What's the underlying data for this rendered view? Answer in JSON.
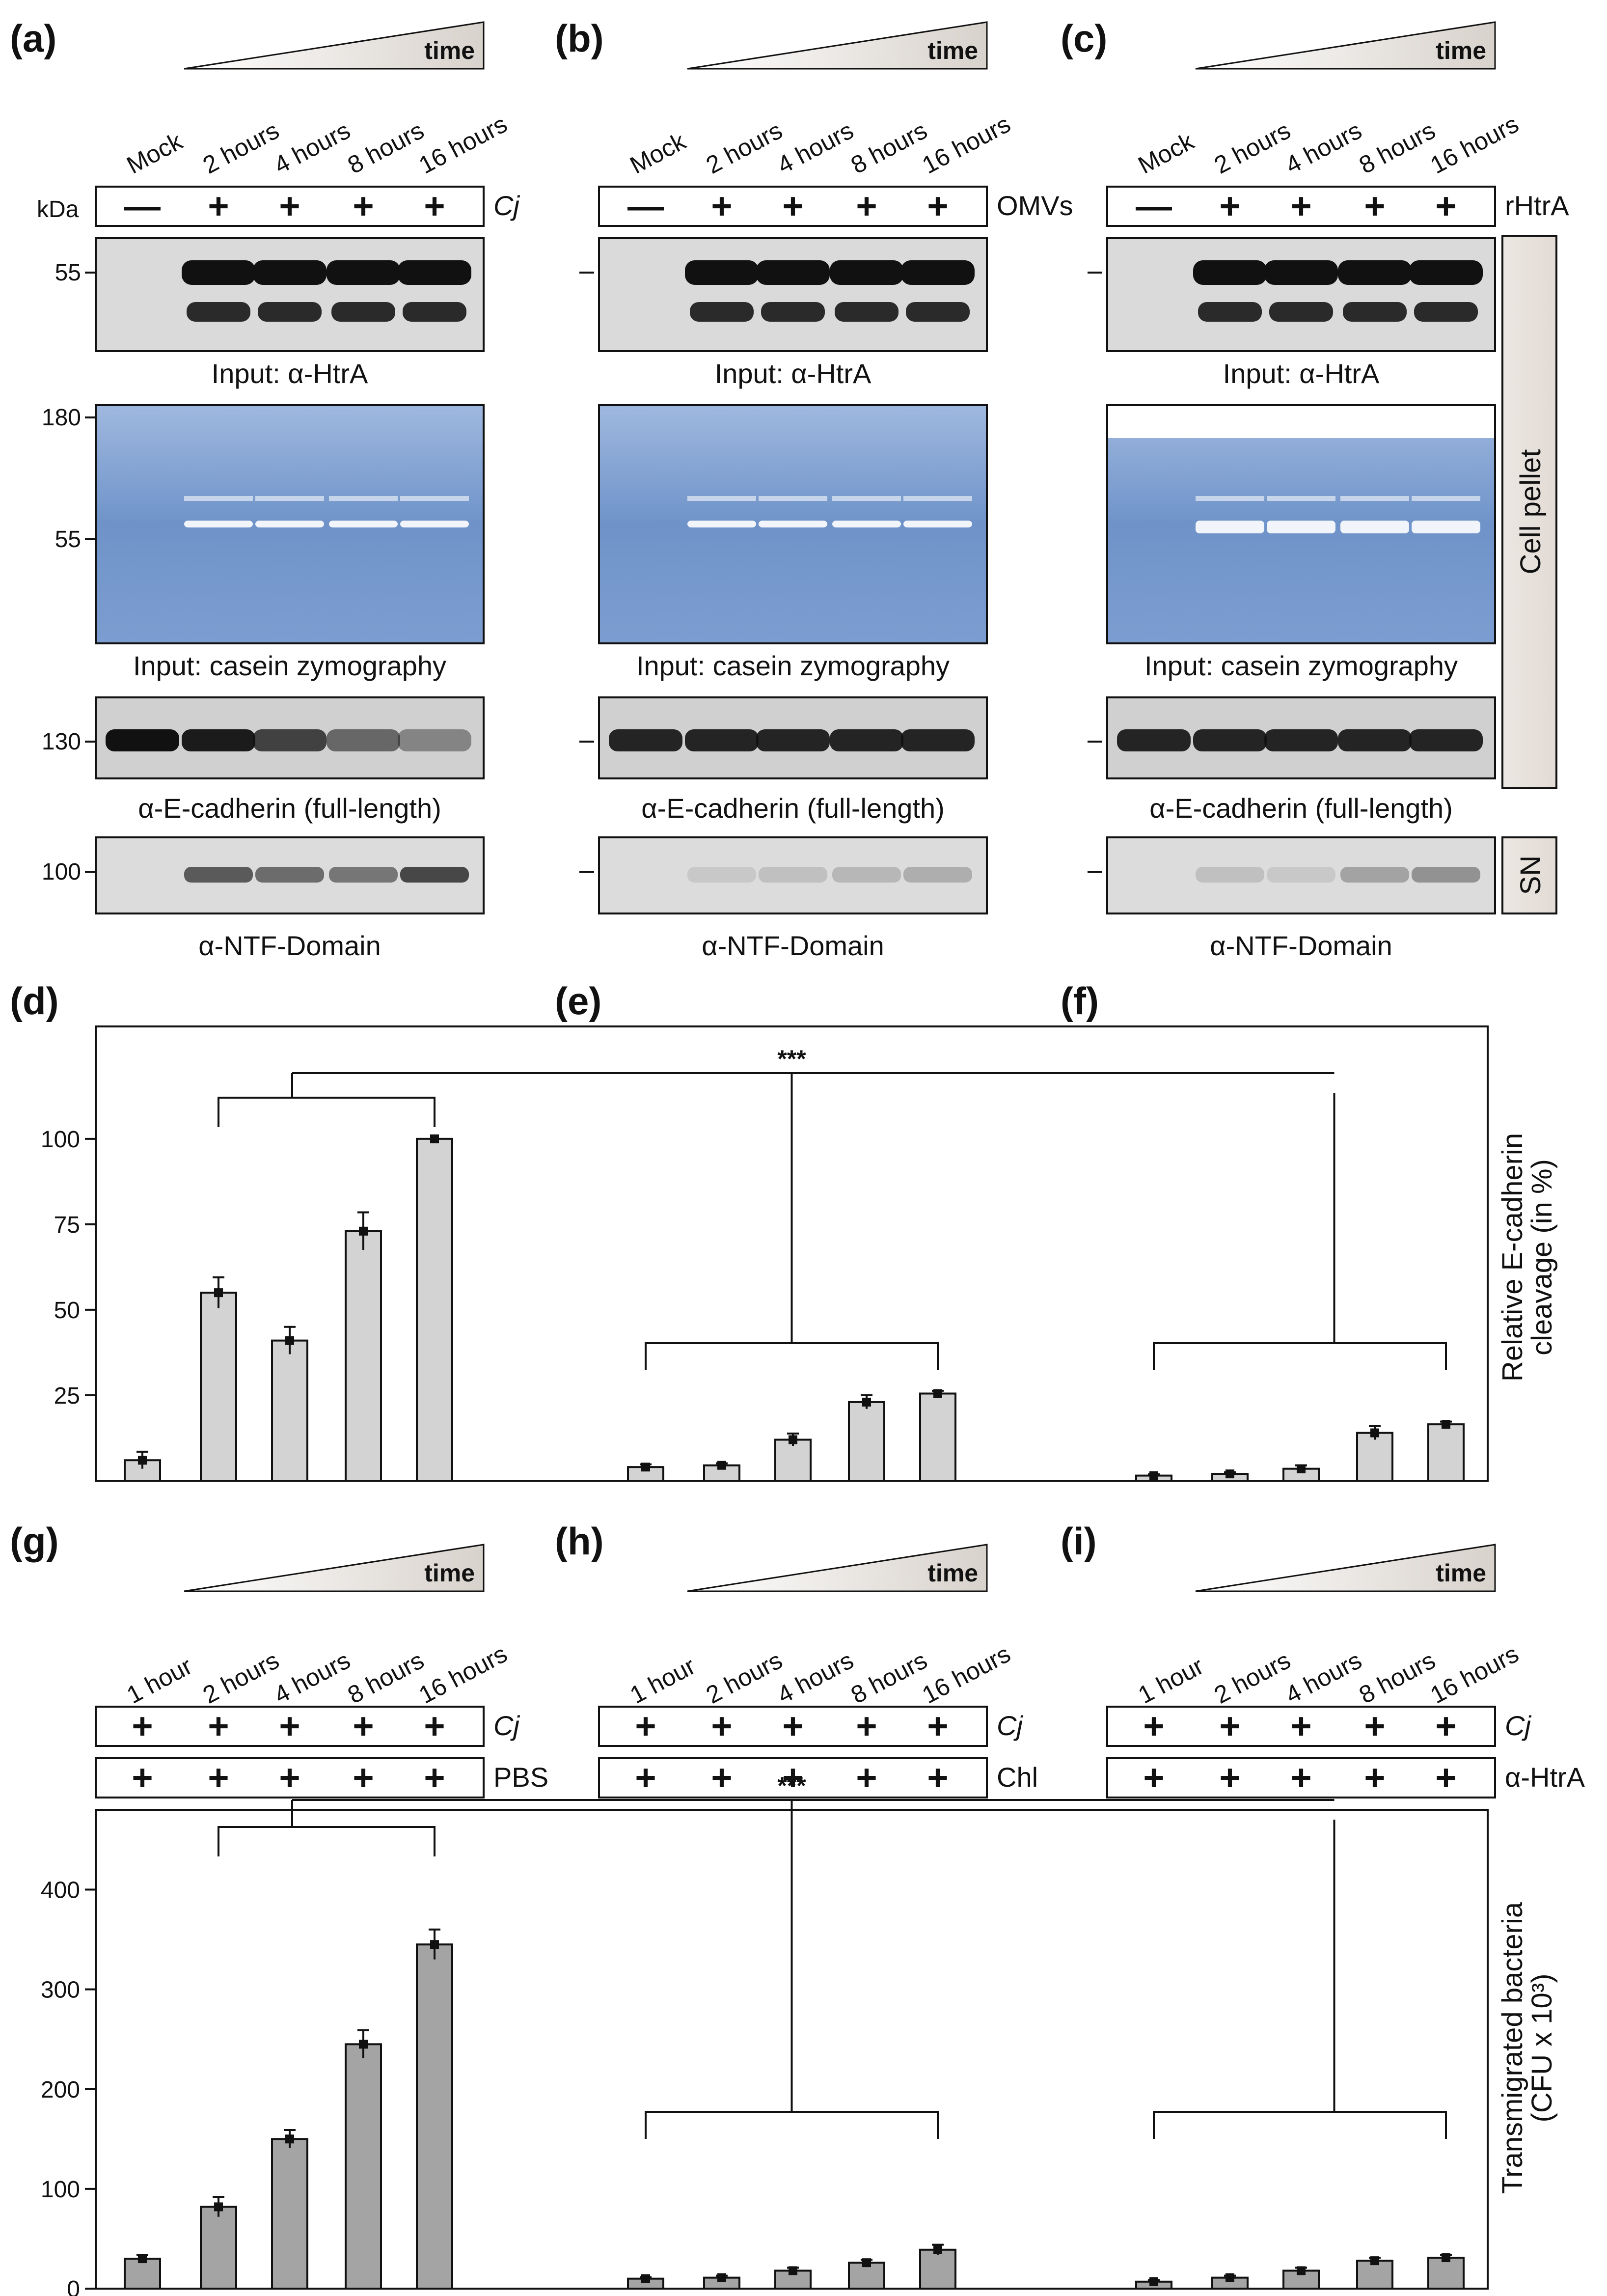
{
  "figure": {
    "panels": {
      "a": "(a)",
      "b": "(b)",
      "c": "(c)",
      "d": "(d)",
      "e": "(e)",
      "f": "(f)",
      "g": "(g)",
      "h": "(h)",
      "i": "(i)"
    },
    "time_label": "time",
    "kda_label": "kDa",
    "top_lanes": [
      "Mock",
      "2 hours",
      "4 hours",
      "8 hours",
      "16 hours"
    ],
    "bottom_lanes": [
      "1 hour",
      "2 hours",
      "4 hours",
      "8 hours",
      "16 hours"
    ],
    "treatment_signs": [
      "—",
      "+",
      "+",
      "+",
      "+"
    ],
    "plus_sign": "+",
    "treatments_top": [
      "Cj",
      "OMVs",
      "rHtrA"
    ],
    "treatments_bottom_1": [
      "Cj",
      "Cj",
      "Cj"
    ],
    "treatments_bottom_2": [
      "PBS",
      "Chl",
      "α-HtrA"
    ],
    "side_labels": {
      "cell_pellet": "Cell pellet",
      "sn": "SN"
    },
    "markers": {
      "htra": "55",
      "zymo_top": "180",
      "zymo_mid": "55",
      "ecad": "130",
      "ntf": "100"
    },
    "blot_captions": {
      "htra": "Input: α-HtrA",
      "zymo": "Input: casein zymography",
      "ecad": "α-E-cadherin (full-length)",
      "ntf": "α-NTF-Domain"
    },
    "colors": {
      "bar_light": "#d3d3d3",
      "bar_dark": "#a4a4a4",
      "zymo_blue": "#6f93c9",
      "blot_bg": "#dcdcdc"
    }
  },
  "chart_data": [
    {
      "type": "bar",
      "panel": "d-f",
      "groups": [
        "Cj",
        "OMVs",
        "rHtrA"
      ],
      "categories": [
        "Mock",
        "2 hours",
        "4 hours",
        "8 hours",
        "16 hours"
      ],
      "series": [
        {
          "values": [
            6,
            55,
            41,
            73,
            100
          ],
          "errors": [
            2.5,
            4.5,
            4,
            5.5,
            0
          ]
        },
        {
          "values": [
            4,
            4.5,
            12,
            23,
            25.5
          ],
          "errors": [
            0.8,
            0.6,
            1.8,
            2,
            0.8
          ]
        },
        {
          "values": [
            1.5,
            2,
            3.5,
            14,
            16.5
          ],
          "errors": [
            0.4,
            0.5,
            1,
            2,
            0.8
          ]
        }
      ],
      "ylabel": "Relative E-cadherin cleavage (in %)",
      "yticks": [
        25,
        50,
        75,
        100
      ],
      "ylim": [
        0,
        130
      ],
      "significance": "***"
    },
    {
      "type": "bar",
      "panel": "g-i",
      "groups": [
        "PBS",
        "Chl",
        "α-HtrA"
      ],
      "categories": [
        "1 hour",
        "2 hours",
        "4 hours",
        "8 hours",
        "16 hours"
      ],
      "series": [
        {
          "values": [
            30,
            82,
            150,
            245,
            345
          ],
          "errors": [
            4,
            10,
            9,
            14,
            15
          ]
        },
        {
          "values": [
            10,
            11,
            18,
            26,
            39
          ],
          "errors": [
            1.5,
            2,
            3,
            3,
            5
          ]
        },
        {
          "values": [
            7,
            11,
            18,
            28,
            31
          ],
          "errors": [
            1.5,
            2,
            3,
            3,
            3
          ]
        }
      ],
      "ylabel": "Transmigrated bacteria (CFU x 10³)",
      "yticks": [
        0,
        100,
        200,
        300,
        400
      ],
      "ylim": [
        0,
        480
      ],
      "significance": "***"
    }
  ]
}
